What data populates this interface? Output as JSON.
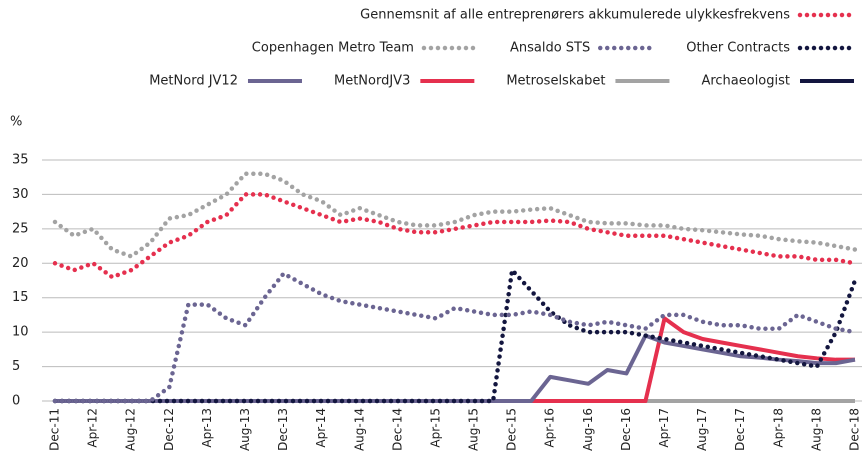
{
  "chart_data": {
    "type": "line",
    "y_label": "%",
    "categories": [
      "Dec-11",
      null,
      "Apr-12",
      null,
      "Aug-12",
      null,
      "Dec-12",
      null,
      "Apr-13",
      null,
      "Aug-13",
      null,
      "Dec-13",
      null,
      "Apr-14",
      null,
      "Aug-14",
      null,
      "Dec-14",
      null,
      "Apr-15",
      null,
      "Aug-15",
      null,
      "Dec-15",
      null,
      "Apr-16",
      null,
      "Aug-16",
      null,
      "Dec-16",
      null,
      "Apr-17",
      null,
      "Aug-17",
      null,
      "Dec-17",
      null,
      "Apr-18",
      null,
      "Aug-18",
      null,
      "Dec-18"
    ],
    "ylim": [
      0,
      35
    ],
    "yticks": [
      0,
      5,
      10,
      15,
      20,
      25,
      30,
      35
    ],
    "grid": true,
    "series": [
      {
        "name": "Gennemsnit af alle entreprenørers akkumulerede ulykkesfrekvens",
        "color": "#e5304e",
        "dash": "dotted",
        "values": [
          20,
          19,
          20,
          18,
          19,
          21,
          23,
          24,
          26,
          27,
          30,
          30,
          29,
          28,
          27,
          26,
          26.5,
          26,
          25,
          24.5,
          24.5,
          25,
          25.5,
          26,
          26,
          26,
          26.2,
          26,
          25,
          24.5,
          24,
          24,
          24,
          23.5,
          23,
          22.5,
          22,
          21.5,
          21,
          21,
          20.5,
          20.5,
          20
        ]
      },
      {
        "name": "Copenhagen Metro Team",
        "color": "#a3a3a3",
        "dash": "dotted",
        "values": [
          26,
          24,
          25,
          22,
          21,
          23,
          26.5,
          27,
          28.5,
          30,
          33,
          33,
          32,
          30,
          29,
          27,
          28,
          27,
          26,
          25.5,
          25.5,
          26,
          27,
          27.5,
          27.5,
          27.8,
          28,
          27,
          26,
          25.8,
          25.8,
          25.5,
          25.5,
          25,
          24.8,
          24.5,
          24.2,
          24,
          23.5,
          23.2,
          23,
          22.5,
          22
        ]
      },
      {
        "name": "Ansaldo STS",
        "color": "#6b6592",
        "dash": "dotted",
        "values": [
          0,
          0,
          0,
          0,
          0,
          0,
          2,
          14,
          14,
          12,
          11,
          15,
          18.5,
          17,
          15.5,
          14.5,
          14,
          13.5,
          13,
          12.5,
          12,
          13.5,
          13,
          12.5,
          12.5,
          13,
          12.5,
          11.5,
          11,
          11.5,
          11,
          10.5,
          12.5,
          12.5,
          11.5,
          11,
          11,
          10.5,
          10.5,
          12.5,
          11.5,
          10.5,
          10
        ]
      },
      {
        "name": "Other Contracts",
        "color": "#13163f",
        "dash": "dotted",
        "values": [
          0,
          0,
          0,
          0,
          0,
          0,
          0,
          0,
          0,
          0,
          0,
          0,
          0,
          0,
          0,
          0,
          0,
          0,
          0,
          0,
          0,
          0,
          0,
          0,
          19,
          16,
          13,
          11,
          10,
          10,
          10,
          9.5,
          9,
          8.5,
          8,
          7.5,
          7,
          6.5,
          6,
          5.5,
          5,
          10,
          17.5
        ]
      },
      {
        "name": "MetNord JV12",
        "color": "#6b6592",
        "dash": "solid",
        "values": [
          0,
          0,
          0,
          0,
          0,
          0,
          0,
          0,
          0,
          0,
          0,
          0,
          0,
          0,
          0,
          0,
          0,
          0,
          0,
          0,
          0,
          0,
          0,
          0,
          0,
          0,
          3.5,
          3,
          2.5,
          4.5,
          4,
          9.5,
          8.5,
          8,
          7.5,
          7,
          6.5,
          6.3,
          6,
          5.8,
          5.5,
          5.5,
          6
        ]
      },
      {
        "name": "MetNordJV3",
        "color": "#e5304e",
        "dash": "solid",
        "values": [
          0,
          0,
          0,
          0,
          0,
          0,
          0,
          0,
          0,
          0,
          0,
          0,
          0,
          0,
          0,
          0,
          0,
          0,
          0,
          0,
          0,
          0,
          0,
          0,
          0,
          0,
          0,
          0,
          0,
          0,
          0,
          0,
          12,
          10,
          9,
          8.5,
          8,
          7.5,
          7,
          6.5,
          6.2,
          6,
          6
        ]
      },
      {
        "name": "Metroselskabet",
        "color": "#a3a3a3",
        "dash": "solid",
        "values": [
          0,
          0,
          0,
          0,
          0,
          0,
          0,
          0,
          0,
          0,
          0,
          0,
          0,
          0,
          0,
          0,
          0,
          0,
          0,
          0,
          0,
          0,
          0,
          0,
          0,
          0,
          0,
          0,
          0,
          0,
          0,
          0,
          0,
          0,
          0,
          0,
          0,
          0,
          0,
          0,
          0,
          0,
          0
        ]
      },
      {
        "name": "Archaeologist",
        "color": "#13163f",
        "dash": "solid",
        "values": [
          0,
          0,
          0,
          0,
          0,
          0,
          0,
          0,
          0,
          0,
          0,
          0,
          0,
          0,
          0,
          0,
          0,
          0,
          0,
          0,
          0,
          0,
          0,
          0,
          0,
          0,
          0,
          0,
          0,
          0,
          0,
          0,
          0,
          0,
          0,
          0,
          0,
          0,
          0,
          0,
          0,
          0,
          0
        ]
      }
    ]
  }
}
